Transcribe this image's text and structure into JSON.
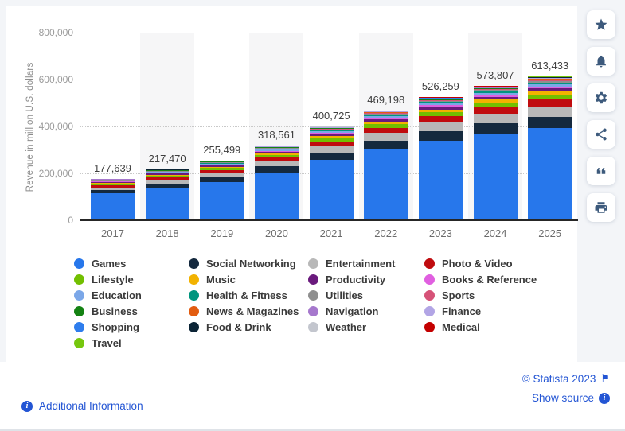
{
  "chart_data": {
    "type": "bar",
    "stacked": true,
    "title": "",
    "ylabel": "Revenue in million U.S. dollars",
    "xlabel": "",
    "ylim": [
      0,
      800000
    ],
    "grid": "dotted-horizontal",
    "legend_position": "bottom",
    "yticks": [
      {
        "value": 0,
        "label": "0"
      },
      {
        "value": 200000,
        "label": "200,000"
      },
      {
        "value": 400000,
        "label": "400,000"
      },
      {
        "value": 600000,
        "label": "600,000"
      },
      {
        "value": 800000,
        "label": "800,000"
      }
    ],
    "categories": [
      "2017",
      "2018",
      "2019",
      "2020",
      "2021",
      "2022",
      "2023",
      "2024",
      "2025"
    ],
    "totals": [
      177639,
      217470,
      255499,
      318561,
      400725,
      469198,
      526259,
      573807,
      613433
    ],
    "total_labels": [
      "177,639",
      "217,470",
      "255,499",
      "318,561",
      "400,725",
      "469,198",
      "526,259",
      "573,807",
      "613,433"
    ],
    "highlighted_columns": [
      "2018",
      "2020",
      "2022",
      "2024"
    ],
    "series_note": "segment values are estimated shares of the labeled yearly totals, stack order bottom-to-top",
    "series": [
      {
        "name": "Games",
        "color": "#2777eb",
        "estimated_share": 0.645
      },
      {
        "name": "Social Networking",
        "color": "#14293e",
        "estimated_share": 0.078
      },
      {
        "name": "Entertainment",
        "color": "#b8b8b8",
        "estimated_share": 0.072
      },
      {
        "name": "Photo & Video",
        "color": "#c00c0f",
        "estimated_share": 0.05
      },
      {
        "name": "Lifestyle",
        "color": "#72bf00",
        "estimated_share": 0.033
      },
      {
        "name": "Music",
        "color": "#f2b200",
        "estimated_share": 0.022
      },
      {
        "name": "Productivity",
        "color": "#6a1a7d",
        "estimated_share": 0.019
      },
      {
        "name": "Books & Reference",
        "color": "#e05fe0",
        "estimated_share": 0.016
      },
      {
        "name": "Education",
        "color": "#7ba7e8",
        "estimated_share": 0.014
      },
      {
        "name": "Health & Fitness",
        "color": "#00957e",
        "estimated_share": 0.014
      },
      {
        "name": "Utilities",
        "color": "#8f8f8f",
        "estimated_share": 0.008
      },
      {
        "name": "Sports",
        "color": "#d65278",
        "estimated_share": 0.008
      },
      {
        "name": "Business",
        "color": "#148213",
        "estimated_share": 0.004
      },
      {
        "name": "News & Magazines",
        "color": "#e25c10",
        "estimated_share": 0.004
      },
      {
        "name": "Navigation",
        "color": "#a678cd",
        "estimated_share": 0.003
      },
      {
        "name": "Finance",
        "color": "#b2a5e5",
        "estimated_share": 0.003
      },
      {
        "name": "Shopping",
        "color": "#2e7ded",
        "estimated_share": 0.0025
      },
      {
        "name": "Food & Drink",
        "color": "#0b2436",
        "estimated_share": 0.0025
      },
      {
        "name": "Weather",
        "color": "#c3c6ce",
        "estimated_share": 0.002
      },
      {
        "name": "Medical",
        "color": "#c40000",
        "estimated_share": 0.002
      },
      {
        "name": "Travel",
        "color": "#76c70e",
        "estimated_share": 0.002
      }
    ]
  },
  "legend": {
    "columns": [
      [
        "Games",
        "Lifestyle",
        "Education",
        "Business",
        "Shopping",
        "Travel"
      ],
      [
        "Social Networking",
        "Music",
        "Health & Fitness",
        "News & Magazines",
        "Food & Drink"
      ],
      [
        "Entertainment",
        "Productivity",
        "Utilities",
        "Navigation",
        "Weather"
      ],
      [
        "Photo & Video",
        "Books & Reference",
        "Sports",
        "Finance",
        "Medical"
      ]
    ]
  },
  "toolbar": {
    "buttons": [
      {
        "id": "favorite",
        "icon": "star-icon"
      },
      {
        "id": "notifications",
        "icon": "bell-icon"
      },
      {
        "id": "settings",
        "icon": "gear-icon"
      },
      {
        "id": "share",
        "icon": "share-icon"
      },
      {
        "id": "cite",
        "icon": "quote-icon"
      },
      {
        "id": "print",
        "icon": "printer-icon"
      }
    ]
  },
  "footer": {
    "additional_information": "Additional Information",
    "copyright": "© Statista 2023",
    "show_source": "Show source",
    "info_glyph": "i",
    "flag_glyph": "⚑",
    "link_color": "#2355d4"
  }
}
